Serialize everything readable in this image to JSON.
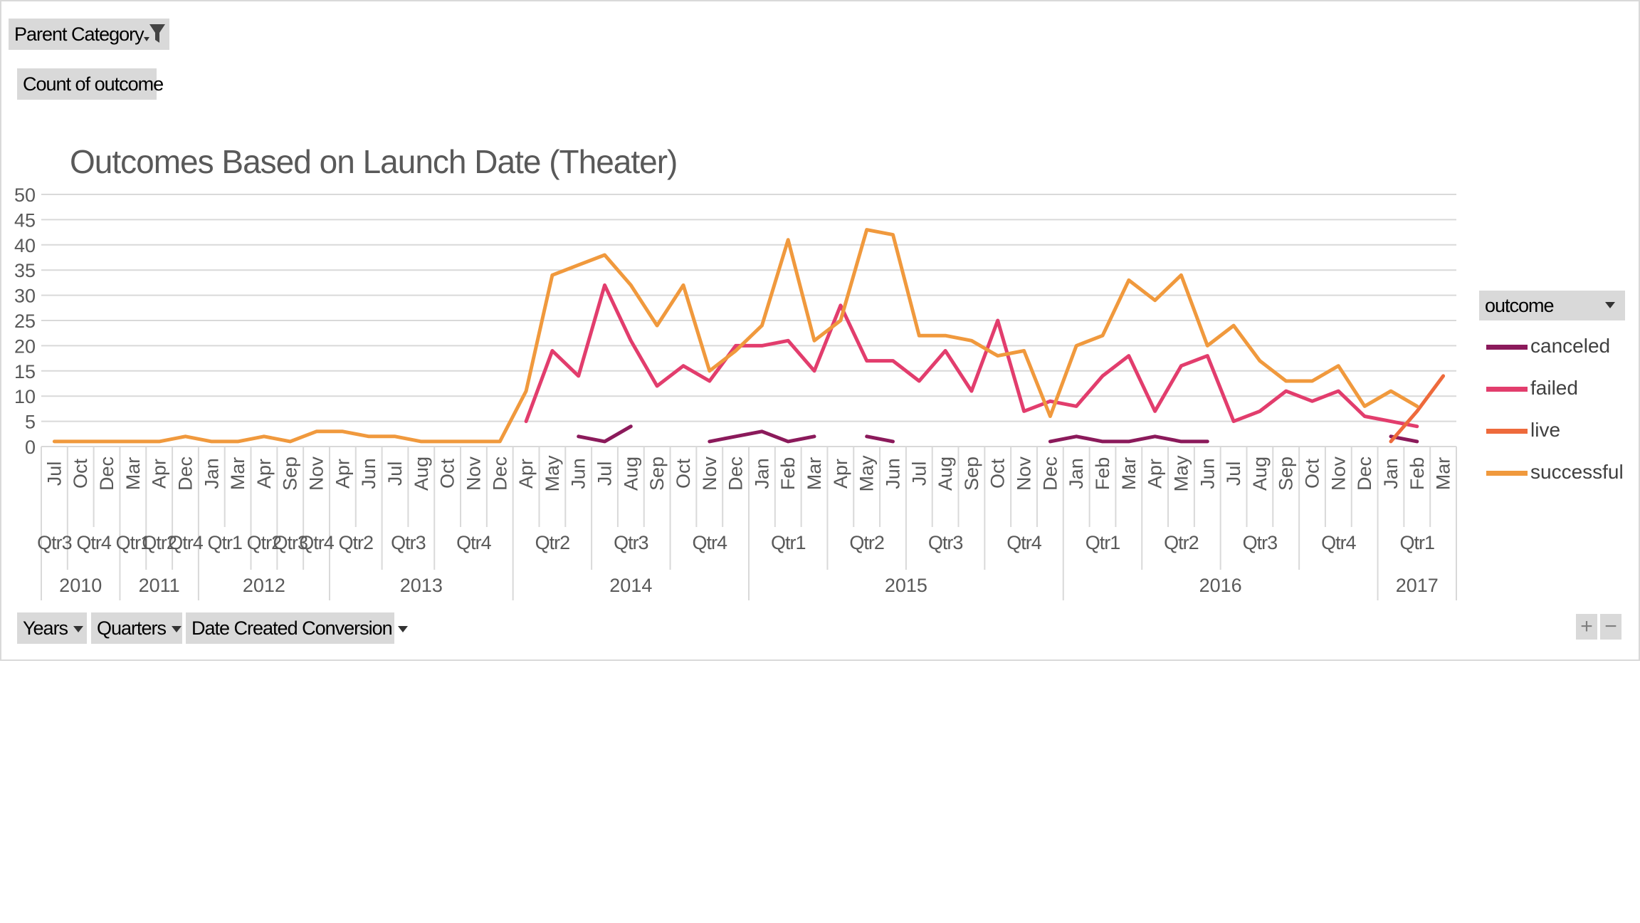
{
  "filters": {
    "parent_category": "Parent Category",
    "values_field": "Count of outcome"
  },
  "axis_fields": {
    "years": "Years",
    "quarters": "Quarters",
    "date": "Date Created Conversion"
  },
  "legend": {
    "title": "outcome"
  },
  "zoom": {
    "plus": "+",
    "minus": "−"
  },
  "chart_data": {
    "type": "line",
    "title": "Outcomes Based on Launch Date (Theater)",
    "ylim": [
      0,
      50
    ],
    "yticks": [
      0,
      5,
      10,
      15,
      20,
      25,
      30,
      35,
      40,
      45,
      50
    ],
    "grid": true,
    "legend_position": "right",
    "categories": [
      "Jul",
      "Oct",
      "Dec",
      "Mar",
      "Apr",
      "Dec",
      "Jan",
      "Mar",
      "Apr",
      "Sep",
      "Nov",
      "Apr",
      "Jun",
      "Jul",
      "Aug",
      "Oct",
      "Nov",
      "Dec",
      "Apr",
      "May",
      "Jun",
      "Jul",
      "Aug",
      "Sep",
      "Oct",
      "Nov",
      "Dec",
      "Jan",
      "Feb",
      "Mar",
      "Apr",
      "May",
      "Jun",
      "Jul",
      "Aug",
      "Sep",
      "Oct",
      "Nov",
      "Dec",
      "Jan",
      "Feb",
      "Mar",
      "Apr",
      "May",
      "Jun",
      "Jul",
      "Aug",
      "Sep",
      "Oct",
      "Nov",
      "Dec",
      "Jan",
      "Feb",
      "Mar"
    ],
    "quarters": [
      {
        "label": "Qtr3",
        "start": 0,
        "end": 0
      },
      {
        "label": "Qtr4",
        "start": 1,
        "end": 2
      },
      {
        "label": "Qtr1",
        "start": 3,
        "end": 3
      },
      {
        "label": "Qtr2",
        "start": 4,
        "end": 4
      },
      {
        "label": "Qtr4",
        "start": 5,
        "end": 5
      },
      {
        "label": "Qtr1",
        "start": 6,
        "end": 7
      },
      {
        "label": "Qtr2",
        "start": 8,
        "end": 8
      },
      {
        "label": "Qtr3",
        "start": 9,
        "end": 9
      },
      {
        "label": "Qtr4",
        "start": 10,
        "end": 10
      },
      {
        "label": "Qtr2",
        "start": 11,
        "end": 12
      },
      {
        "label": "Qtr3",
        "start": 13,
        "end": 14
      },
      {
        "label": "Qtr4",
        "start": 15,
        "end": 17
      },
      {
        "label": "Qtr2",
        "start": 18,
        "end": 20
      },
      {
        "label": "Qtr3",
        "start": 21,
        "end": 23
      },
      {
        "label": "Qtr4",
        "start": 24,
        "end": 26
      },
      {
        "label": "Qtr1",
        "start": 27,
        "end": 29
      },
      {
        "label": "Qtr2",
        "start": 30,
        "end": 32
      },
      {
        "label": "Qtr3",
        "start": 33,
        "end": 35
      },
      {
        "label": "Qtr4",
        "start": 36,
        "end": 38
      },
      {
        "label": "Qtr1",
        "start": 39,
        "end": 41
      },
      {
        "label": "Qtr2",
        "start": 42,
        "end": 44
      },
      {
        "label": "Qtr3",
        "start": 45,
        "end": 47
      },
      {
        "label": "Qtr4",
        "start": 48,
        "end": 50
      },
      {
        "label": "Qtr1",
        "start": 51,
        "end": 53
      }
    ],
    "years": [
      {
        "label": "2010",
        "start": 0,
        "end": 2
      },
      {
        "label": "2011",
        "start": 3,
        "end": 5
      },
      {
        "label": "2012",
        "start": 6,
        "end": 10
      },
      {
        "label": "2013",
        "start": 11,
        "end": 17
      },
      {
        "label": "2014",
        "start": 18,
        "end": 26
      },
      {
        "label": "2015",
        "start": 27,
        "end": 38
      },
      {
        "label": "2016",
        "start": 39,
        "end": 50
      },
      {
        "label": "2017",
        "start": 51,
        "end": 53
      }
    ],
    "series": [
      {
        "name": "canceled",
        "color": "#8b1a5b",
        "values": [
          null,
          null,
          null,
          null,
          null,
          null,
          null,
          null,
          null,
          null,
          null,
          null,
          null,
          null,
          null,
          null,
          null,
          null,
          null,
          null,
          2,
          1,
          4,
          null,
          null,
          1,
          2,
          3,
          1,
          2,
          null,
          2,
          1,
          null,
          null,
          null,
          null,
          null,
          1,
          2,
          1,
          1,
          2,
          1,
          1,
          null,
          null,
          null,
          null,
          null,
          null,
          2,
          1,
          null
        ]
      },
      {
        "name": "failed",
        "color": "#e23d6d",
        "values": [
          null,
          null,
          null,
          null,
          null,
          null,
          null,
          null,
          null,
          null,
          null,
          null,
          null,
          null,
          null,
          null,
          null,
          null,
          5,
          19,
          14,
          32,
          21,
          12,
          16,
          13,
          20,
          20,
          21,
          15,
          28,
          17,
          17,
          13,
          19,
          11,
          25,
          7,
          9,
          8,
          14,
          18,
          7,
          16,
          18,
          5,
          7,
          11,
          9,
          11,
          6,
          5,
          4,
          null
        ]
      },
      {
        "name": "live",
        "color": "#ee6a3c",
        "values": [
          null,
          null,
          null,
          null,
          null,
          null,
          null,
          null,
          null,
          null,
          null,
          null,
          null,
          null,
          null,
          null,
          null,
          null,
          null,
          null,
          null,
          null,
          null,
          null,
          null,
          null,
          null,
          null,
          null,
          null,
          null,
          null,
          null,
          null,
          null,
          null,
          null,
          null,
          null,
          null,
          null,
          null,
          null,
          null,
          null,
          null,
          null,
          null,
          null,
          null,
          null,
          1,
          7,
          14
        ]
      },
      {
        "name": "successful",
        "color": "#f0993d",
        "values": [
          1,
          1,
          1,
          1,
          1,
          2,
          1,
          1,
          2,
          1,
          3,
          3,
          2,
          2,
          1,
          1,
          1,
          1,
          11,
          34,
          36,
          38,
          32,
          24,
          32,
          15,
          19,
          24,
          41,
          21,
          25,
          43,
          42,
          22,
          22,
          21,
          18,
          19,
          6,
          20,
          22,
          33,
          29,
          34,
          20,
          24,
          17,
          13,
          13,
          16,
          8,
          11,
          8,
          null
        ]
      }
    ]
  }
}
